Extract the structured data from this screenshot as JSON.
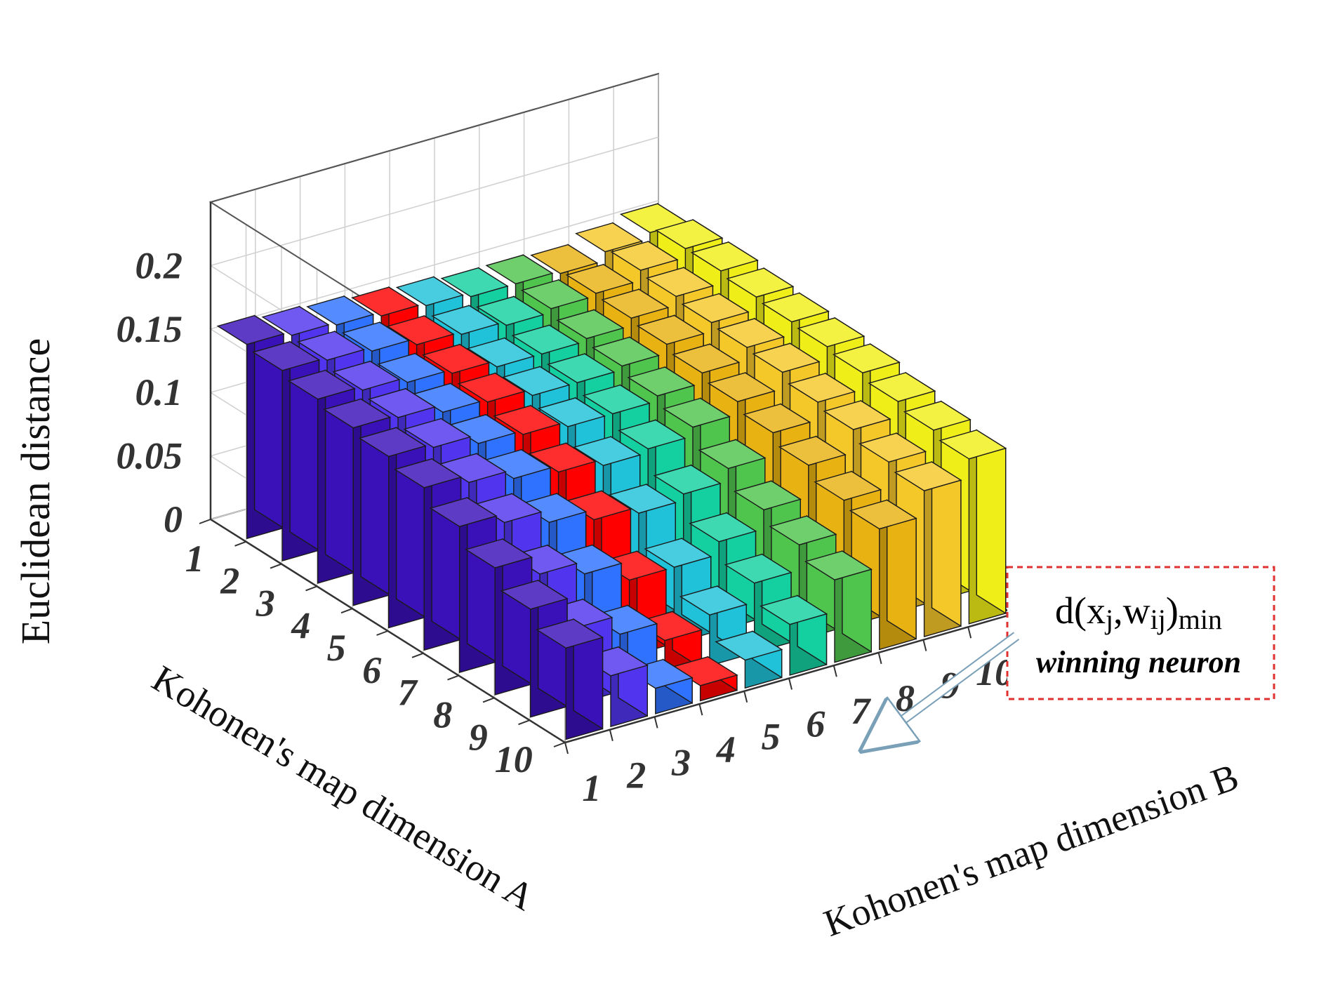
{
  "chart_data": {
    "type": "bar3d",
    "zlabel": "Euclidean distance",
    "xlabel": "Kohonen's map dimension A",
    "ylabel": "Kohonen's map dimension B",
    "a_ticks": [
      "1",
      "2",
      "3",
      "4",
      "5",
      "6",
      "7",
      "8",
      "9",
      "10"
    ],
    "b_ticks": [
      "1",
      "2",
      "3",
      "4",
      "5",
      "6",
      "7",
      "8",
      "9",
      "10"
    ],
    "z_ticks": [
      "0",
      "0.05",
      "0.1",
      "0.15",
      "0.2"
    ],
    "zlim": [
      0,
      0.25
    ],
    "colors_by_b": [
      "#3a10b8",
      "#5034ee",
      "#2f72ff",
      "#ff0000",
      "#1fc2d8",
      "#14cfa0",
      "#4fc54d",
      "#e8b212",
      "#f5c82a",
      "#f0ee18"
    ],
    "heights": [
      [
        0.153,
        0.15,
        0.148,
        0.145,
        0.143,
        0.14,
        0.14,
        0.138,
        0.145,
        0.15
      ],
      [
        0.15,
        0.148,
        0.145,
        0.14,
        0.138,
        0.135,
        0.138,
        0.14,
        0.148,
        0.155
      ],
      [
        0.145,
        0.142,
        0.138,
        0.135,
        0.13,
        0.13,
        0.132,
        0.138,
        0.145,
        0.155
      ],
      [
        0.14,
        0.138,
        0.132,
        0.13,
        0.125,
        0.125,
        0.128,
        0.135,
        0.142,
        0.152
      ],
      [
        0.135,
        0.132,
        0.125,
        0.122,
        0.118,
        0.118,
        0.122,
        0.13,
        0.14,
        0.15
      ],
      [
        0.128,
        0.122,
        0.115,
        0.11,
        0.105,
        0.108,
        0.115,
        0.125,
        0.138,
        0.148
      ],
      [
        0.115,
        0.108,
        0.098,
        0.09,
        0.085,
        0.09,
        0.1,
        0.118,
        0.132,
        0.145
      ],
      [
        0.1,
        0.085,
        0.075,
        0.06,
        0.06,
        0.07,
        0.085,
        0.11,
        0.128,
        0.14
      ],
      [
        0.085,
        0.06,
        0.045,
        0.03,
        0.04,
        0.055,
        0.075,
        0.1,
        0.12,
        0.135
      ],
      [
        0.072,
        0.04,
        0.02,
        0.012,
        0.022,
        0.04,
        0.065,
        0.095,
        0.115,
        0.13
      ]
    ],
    "annotation": {
      "formula": "d(xj,wij)min",
      "formula_d": "d(",
      "formula_x": "x",
      "formula_j": "j",
      "formula_comma": ",",
      "formula_w": "w",
      "formula_ij": "ij",
      "formula_close": ")",
      "formula_min": "min",
      "label": "winning neuron",
      "target": {
        "a": 10,
        "b": 4
      }
    }
  }
}
